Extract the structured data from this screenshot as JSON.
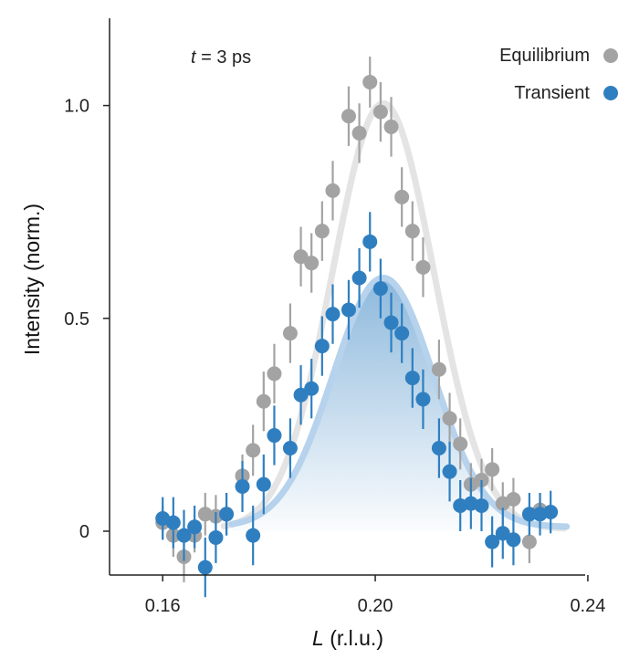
{
  "chart_data": {
    "type": "scatter",
    "title": "",
    "annotation": {
      "var": "t",
      "rest": " = 3 ps"
    },
    "xlabel": {
      "var": "L",
      "rest": " (r.l.u.)"
    },
    "ylabel": "Intensity (norm.)",
    "xlim": [
      0.15,
      0.2395
    ],
    "ylim": [
      -0.103,
      1.205
    ],
    "xticks": [
      {
        "value": 0.16,
        "label": "0.16"
      },
      {
        "value": 0.2,
        "label": "0.20"
      },
      {
        "value": 0.24,
        "label": "0.24"
      }
    ],
    "yticks": [
      {
        "value": 0,
        "label": "0"
      },
      {
        "value": 0.5,
        "label": "0.5"
      },
      {
        "value": 1.0,
        "label": "1.0"
      }
    ],
    "legend_position": "top-right",
    "colors": {
      "equilibrium": "#a3a3a3",
      "equilibrium_fit": "#e4e4e4",
      "transient": "#2f7fc0",
      "transient_fit": "#b6d2ec",
      "axis": "#222222"
    },
    "series": [
      {
        "name": "Equilibrium",
        "fit": {
          "center": 0.2015,
          "sigma": 0.0095,
          "amplitude": 1.0,
          "baseline": 0.005
        },
        "points": [
          [
            0.16,
            0.02,
            0.04
          ],
          [
            0.162,
            -0.01,
            0.05
          ],
          [
            0.164,
            -0.06,
            0.06
          ],
          [
            0.166,
            -0.01,
            0.04
          ],
          [
            0.168,
            0.04,
            0.05
          ],
          [
            0.17,
            0.035,
            0.05
          ],
          [
            0.172,
            0.04,
            0.05
          ],
          [
            0.175,
            0.13,
            0.05
          ],
          [
            0.177,
            0.19,
            0.06
          ],
          [
            0.179,
            0.305,
            0.07
          ],
          [
            0.181,
            0.37,
            0.07
          ],
          [
            0.184,
            0.465,
            0.07
          ],
          [
            0.186,
            0.645,
            0.07
          ],
          [
            0.188,
            0.63,
            0.07
          ],
          [
            0.19,
            0.705,
            0.07
          ],
          [
            0.192,
            0.8,
            0.07
          ],
          [
            0.195,
            0.975,
            0.07
          ],
          [
            0.197,
            0.935,
            0.07
          ],
          [
            0.199,
            1.055,
            0.06
          ],
          [
            0.201,
            0.985,
            0.07
          ],
          [
            0.203,
            0.95,
            0.07
          ],
          [
            0.205,
            0.785,
            0.07
          ],
          [
            0.207,
            0.705,
            0.07
          ],
          [
            0.209,
            0.62,
            0.07
          ],
          [
            0.212,
            0.38,
            0.07
          ],
          [
            0.214,
            0.265,
            0.06
          ],
          [
            0.216,
            0.205,
            0.06
          ],
          [
            0.218,
            0.11,
            0.05
          ],
          [
            0.22,
            0.12,
            0.05
          ],
          [
            0.222,
            0.145,
            0.05
          ],
          [
            0.224,
            0.065,
            0.05
          ],
          [
            0.226,
            0.075,
            0.05
          ],
          [
            0.229,
            -0.025,
            0.05
          ],
          [
            0.231,
            0.05,
            0.04
          ]
        ]
      },
      {
        "name": "Transient",
        "fit": {
          "center": 0.2015,
          "sigma": 0.0095,
          "amplitude": 0.585,
          "baseline": 0.01
        },
        "points": [
          [
            0.16,
            0.03,
            0.05
          ],
          [
            0.162,
            0.02,
            0.06
          ],
          [
            0.164,
            -0.01,
            0.06
          ],
          [
            0.166,
            0.01,
            0.05
          ],
          [
            0.168,
            -0.085,
            0.07
          ],
          [
            0.17,
            -0.015,
            0.06
          ],
          [
            0.172,
            0.04,
            0.05
          ],
          [
            0.175,
            0.105,
            0.06
          ],
          [
            0.177,
            -0.01,
            0.07
          ],
          [
            0.179,
            0.11,
            0.07
          ],
          [
            0.181,
            0.225,
            0.07
          ],
          [
            0.184,
            0.195,
            0.07
          ],
          [
            0.186,
            0.32,
            0.07
          ],
          [
            0.188,
            0.335,
            0.07
          ],
          [
            0.19,
            0.435,
            0.07
          ],
          [
            0.192,
            0.51,
            0.07
          ],
          [
            0.195,
            0.52,
            0.07
          ],
          [
            0.197,
            0.595,
            0.07
          ],
          [
            0.199,
            0.68,
            0.07
          ],
          [
            0.201,
            0.57,
            0.07
          ],
          [
            0.203,
            0.49,
            0.07
          ],
          [
            0.205,
            0.465,
            0.07
          ],
          [
            0.207,
            0.36,
            0.07
          ],
          [
            0.209,
            0.31,
            0.07
          ],
          [
            0.212,
            0.195,
            0.07
          ],
          [
            0.214,
            0.14,
            0.07
          ],
          [
            0.216,
            0.06,
            0.06
          ],
          [
            0.218,
            0.065,
            0.06
          ],
          [
            0.22,
            0.06,
            0.06
          ],
          [
            0.222,
            -0.025,
            0.06
          ],
          [
            0.224,
            -0.005,
            0.06
          ],
          [
            0.226,
            -0.02,
            0.06
          ],
          [
            0.229,
            0.04,
            0.05
          ],
          [
            0.231,
            0.04,
            0.05
          ],
          [
            0.233,
            0.045,
            0.05
          ]
        ]
      }
    ]
  }
}
